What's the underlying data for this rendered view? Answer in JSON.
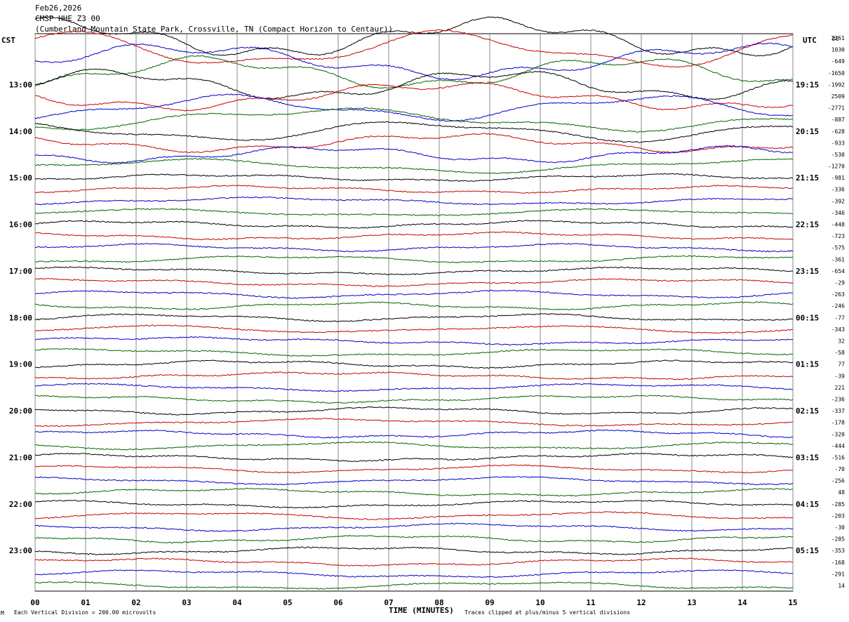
{
  "header": {
    "date": "Feb26,2026",
    "station": "CMSP HHE Z3 00",
    "location": "(Cumberland Mountain State Park, Crossville, TN (Compact Horizon to Centaur))"
  },
  "left_zone_label": "CST",
  "right_zone_label": "UTC",
  "dc_label": "DC",
  "footer": {
    "scale_note": "Each Vertical Division =  200.00 microvolts",
    "clip_note": "Traces clipped at plus/minus 5 vertical divisions",
    "corner_mark": "M"
  },
  "colors": {
    "black": "#000000",
    "red": "#cc0000",
    "blue": "#0000cc",
    "green": "#006600",
    "grid": "#888888"
  },
  "chart_data": {
    "type": "line",
    "title": "CMSP HHE Z3 00",
    "xlabel": "TIME (MINUTES)",
    "x_ticks": [
      "00",
      "01",
      "02",
      "03",
      "04",
      "05",
      "06",
      "07",
      "08",
      "09",
      "10",
      "11",
      "12",
      "13",
      "14",
      "15"
    ],
    "xlim": [
      0,
      15
    ],
    "series_colors": [
      "black",
      "red",
      "blue",
      "green"
    ],
    "left_hour_labels": [
      "13:00",
      "14:00",
      "15:00",
      "16:00",
      "17:00",
      "18:00",
      "19:00",
      "20:00",
      "21:00",
      "22:00",
      "23:00"
    ],
    "right_hour_labels": [
      "19:15",
      "20:15",
      "21:15",
      "22:15",
      "23:15",
      "00:15",
      "01:15",
      "02:15",
      "03:15",
      "04:15",
      "05:15"
    ],
    "dc_offsets": [
      "2361",
      "1030",
      "-649",
      "-1650",
      "-1992",
      "2509",
      "-2771",
      "-887",
      "-628",
      "-933",
      "-530",
      "-1270",
      "-981",
      "-336",
      "-392",
      "-346",
      "-448",
      "-723",
      "-575",
      "-361",
      "-654",
      "-29",
      "-263",
      "-246",
      "-77",
      "-343",
      "32",
      "-58",
      "77",
      "-39",
      "221",
      "-236",
      "-337",
      "-178",
      "-320",
      "-444",
      "-516",
      "-70",
      "-256",
      "48",
      "-285",
      "-203",
      "-30",
      "-285",
      "-353",
      "-168",
      "-291",
      "14"
    ]
  }
}
